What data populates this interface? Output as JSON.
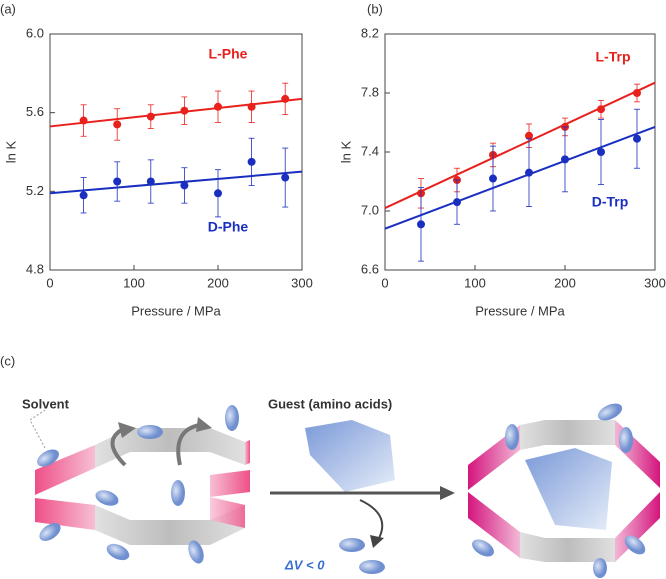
{
  "chart_data": [
    {
      "type": "scatter",
      "panel": "(a)",
      "xlabel": "Pressure / MPa",
      "ylabel": "ln K",
      "xlim": [
        0,
        300
      ],
      "xticks": [
        0,
        100,
        200,
        300
      ],
      "ylim": [
        4.8,
        6.0
      ],
      "yticks": [
        4.8,
        5.2,
        5.6,
        {
          "value": 6.0,
          "label": "6.0"
        }
      ],
      "x": [
        40,
        80,
        120,
        160,
        200,
        240,
        280
      ],
      "series": [
        {
          "name": "L-Phe",
          "color": "#e8211d",
          "values": [
            5.56,
            5.54,
            5.58,
            5.61,
            5.63,
            5.63,
            5.67
          ],
          "errors": [
            0.08,
            0.08,
            0.06,
            0.07,
            0.08,
            0.08,
            0.08
          ],
          "fit": {
            "x": [
              0,
              300
            ],
            "y": [
              5.53,
              5.67
            ]
          }
        },
        {
          "name": "D-Phe",
          "color": "#1a2fc0",
          "values": [
            5.18,
            5.25,
            5.25,
            5.23,
            5.19,
            5.35,
            5.27
          ],
          "errors": [
            0.09,
            0.1,
            0.11,
            0.09,
            0.12,
            0.12,
            0.15
          ],
          "fit": {
            "x": [
              0,
              300
            ],
            "y": [
              5.19,
              5.3
            ]
          }
        }
      ]
    },
    {
      "type": "scatter",
      "panel": "(b)",
      "xlabel": "Pressure / MPa",
      "ylabel": "ln K",
      "xlim": [
        0,
        300
      ],
      "xticks": [
        0,
        100,
        200,
        300
      ],
      "ylim": [
        6.6,
        8.2
      ],
      "yticks": [
        6.6,
        {
          "value": 7.0,
          "label": "7.0"
        },
        7.4,
        7.8,
        8.2
      ],
      "x": [
        40,
        80,
        120,
        160,
        200,
        240,
        280
      ],
      "series": [
        {
          "name": "L-Trp",
          "color": "#e8211d",
          "values": [
            7.12,
            7.21,
            7.38,
            7.51,
            7.57,
            7.69,
            7.8
          ],
          "errors": [
            0.1,
            0.08,
            0.08,
            0.08,
            0.06,
            0.06,
            0.06
          ],
          "fit": {
            "x": [
              0,
              300
            ],
            "y": [
              7.02,
              7.87
            ]
          }
        },
        {
          "name": "D-Trp",
          "color": "#1a2fc0",
          "values": [
            6.91,
            7.06,
            7.22,
            7.26,
            7.35,
            7.4,
            7.49
          ],
          "errors": [
            0.25,
            0.15,
            0.22,
            0.23,
            0.22,
            0.22,
            0.2
          ],
          "fit": {
            "x": [
              0,
              300
            ],
            "y": [
              6.88,
              7.57
            ]
          }
        }
      ]
    }
  ],
  "diagram": {
    "panel": "(c)",
    "solvent": "Solvent",
    "guest": "Guest (amino acids)",
    "delta": "ΔV < 0"
  }
}
